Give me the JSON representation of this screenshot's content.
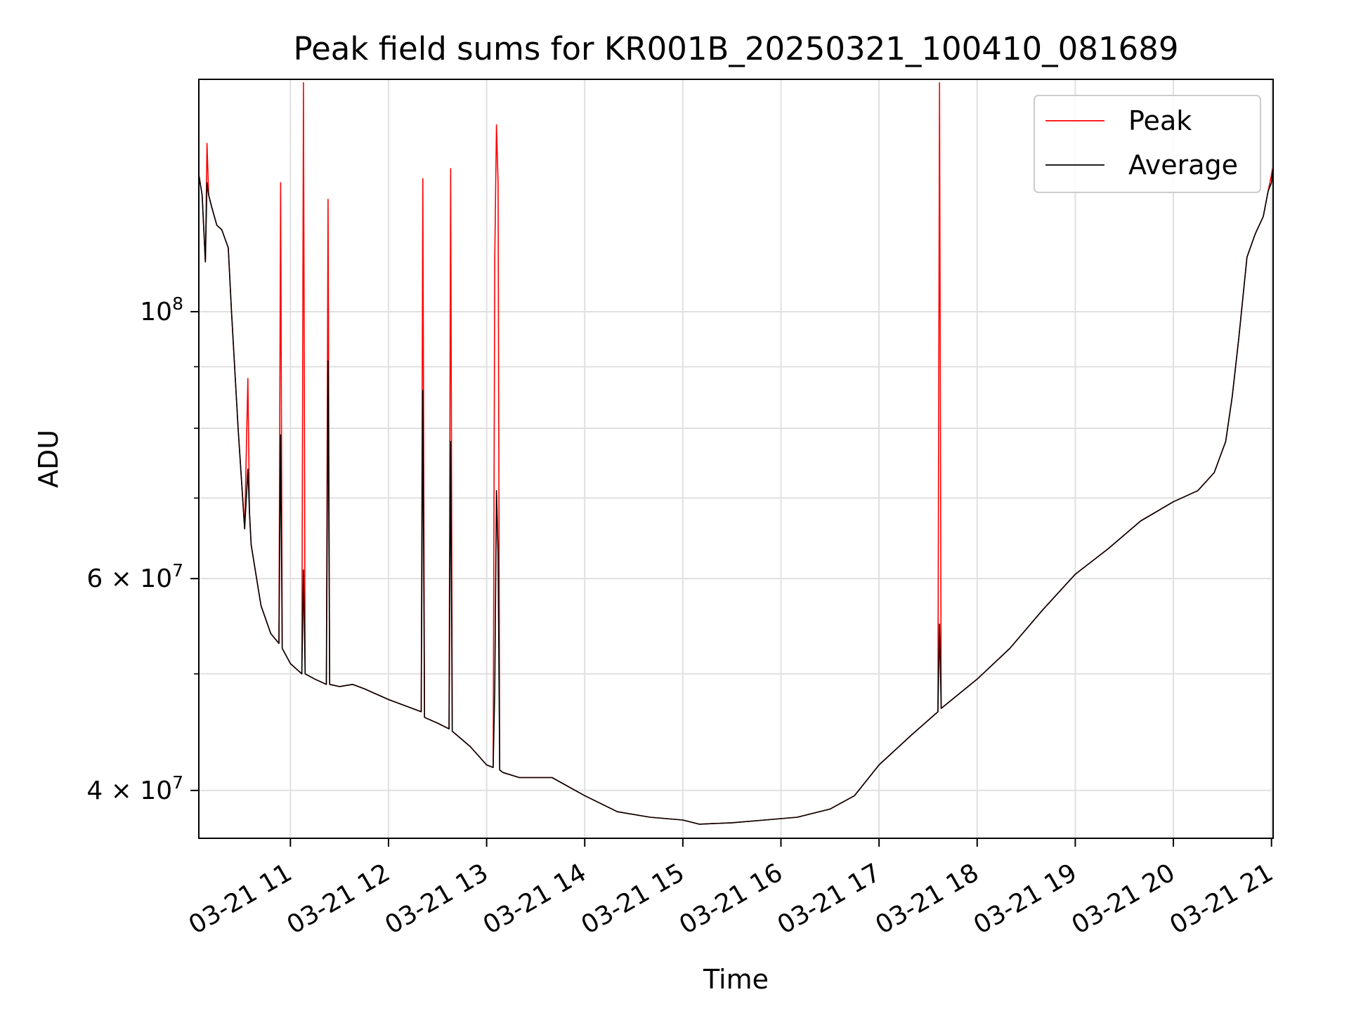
{
  "chart_data": {
    "type": "line",
    "title": "Peak field sums for KR001B_20250321_100410_081689",
    "xlabel": "Time",
    "ylabel": "ADU",
    "y_scale": "log",
    "ylim": [
      36500000,
      156000000
    ],
    "xlim": [
      "2025-03-21 10:04",
      "2025-03-21 21:01"
    ],
    "grid": true,
    "legend_position": "upper-right",
    "x_ticks": [
      "2025-03-21 11:00",
      "2025-03-21 12:00",
      "2025-03-21 13:00",
      "2025-03-21 14:00",
      "2025-03-21 15:00",
      "2025-03-21 16:00",
      "2025-03-21 17:00",
      "2025-03-21 18:00",
      "2025-03-21 19:00",
      "2025-03-21 20:00",
      "2025-03-21 21:00"
    ],
    "x_tick_labels": [
      "03-21 11",
      "03-21 12",
      "03-21 13",
      "03-21 14",
      "03-21 15",
      "03-21 16",
      "03-21 17",
      "03-21 18",
      "03-21 19",
      "03-21 20",
      "03-21 21"
    ],
    "y_major_ticks": [
      {
        "value": 40000000,
        "label": "4 × 10⁷",
        "mant": "4",
        "exp": "7"
      },
      {
        "value": 60000000,
        "label": "6 × 10⁷",
        "mant": "6",
        "exp": "7"
      },
      {
        "value": 100000000,
        "label": "10⁸",
        "mant": "",
        "exp": "8"
      }
    ],
    "y_minor_ticks": [
      50000000,
      70000000,
      80000000,
      90000000
    ],
    "series": [
      {
        "name": "Peak",
        "color": "#ff0000",
        "x": [
          "2025-03-21 10:04",
          "2025-03-21 10:06",
          "2025-03-21 10:08",
          "2025-03-21 10:09",
          "2025-03-21 10:10",
          "2025-03-21 10:12",
          "2025-03-21 10:15",
          "2025-03-21 10:18",
          "2025-03-21 10:22",
          "2025-03-21 10:24",
          "2025-03-21 10:28",
          "2025-03-21 10:32",
          "2025-03-21 10:34",
          "2025-03-21 10:35",
          "2025-03-21 10:36",
          "2025-03-21 10:42",
          "2025-03-21 10:48",
          "2025-03-21 10:53",
          "2025-03-21 10:54",
          "2025-03-21 10:55",
          "2025-03-21 11:00",
          "2025-03-21 11:07",
          "2025-03-21 11:08",
          "2025-03-21 11:09",
          "2025-03-21 11:15",
          "2025-03-21 11:22",
          "2025-03-21 11:23",
          "2025-03-21 11:24",
          "2025-03-21 11:30",
          "2025-03-21 11:38",
          "2025-03-21 11:45",
          "2025-03-21 12:00",
          "2025-03-21 12:20",
          "2025-03-21 12:21",
          "2025-03-21 12:22",
          "2025-03-21 12:30",
          "2025-03-21 12:37",
          "2025-03-21 12:38",
          "2025-03-21 12:39",
          "2025-03-21 12:50",
          "2025-03-21 13:00",
          "2025-03-21 13:04",
          "2025-03-21 13:05",
          "2025-03-21 13:06",
          "2025-03-21 13:07",
          "2025-03-21 13:08",
          "2025-03-21 13:10",
          "2025-03-21 13:20",
          "2025-03-21 13:40",
          "2025-03-21 14:00",
          "2025-03-21 14:20",
          "2025-03-21 14:40",
          "2025-03-21 15:00",
          "2025-03-21 15:10",
          "2025-03-21 15:30",
          "2025-03-21 15:50",
          "2025-03-21 16:10",
          "2025-03-21 16:30",
          "2025-03-21 16:45",
          "2025-03-21 17:00",
          "2025-03-21 17:20",
          "2025-03-21 17:36",
          "2025-03-21 17:37",
          "2025-03-21 17:38",
          "2025-03-21 18:00",
          "2025-03-21 18:20",
          "2025-03-21 18:40",
          "2025-03-21 19:00",
          "2025-03-21 19:20",
          "2025-03-21 19:40",
          "2025-03-21 20:00",
          "2025-03-21 20:15",
          "2025-03-21 20:25",
          "2025-03-21 20:32",
          "2025-03-21 20:36",
          "2025-03-21 20:40",
          "2025-03-21 20:45",
          "2025-03-21 20:50",
          "2025-03-21 20:55",
          "2025-03-21 20:58",
          "2025-03-21 21:00",
          "2025-03-21 21:01"
        ],
        "values": [
          130000000,
          125000000,
          110000000,
          138000000,
          125000000,
          122000000,
          118000000,
          117000000,
          113000000,
          100000000,
          80000000,
          66000000,
          88000000,
          68000000,
          64000000,
          57000000,
          54000000,
          53000000,
          128000000,
          52500000,
          51000000,
          50000000,
          155000000,
          50000000,
          49500000,
          49000000,
          124000000,
          49000000,
          48800000,
          49000000,
          48600000,
          47600000,
          46500000,
          129000000,
          46000000,
          45500000,
          45000000,
          131500000,
          44800000,
          43500000,
          42000000,
          41800000,
          111000000,
          143000000,
          128000000,
          41600000,
          41400000,
          41000000,
          41000000,
          39600000,
          38400000,
          38000000,
          37800000,
          37500000,
          37600000,
          37800000,
          38000000,
          38600000,
          39600000,
          42000000,
          44500000,
          46500000,
          155000000,
          46800000,
          49500000,
          52500000,
          56500000,
          60500000,
          63500000,
          67000000,
          69500000,
          71000000,
          73500000,
          78000000,
          85000000,
          95000000,
          111000000,
          116000000,
          120000000,
          126000000,
          130000000,
          132000000
        ]
      },
      {
        "name": "Average",
        "color": "#000000",
        "x": [
          "2025-03-21 10:04",
          "2025-03-21 10:06",
          "2025-03-21 10:08",
          "2025-03-21 10:09",
          "2025-03-21 10:10",
          "2025-03-21 10:12",
          "2025-03-21 10:15",
          "2025-03-21 10:18",
          "2025-03-21 10:22",
          "2025-03-21 10:24",
          "2025-03-21 10:28",
          "2025-03-21 10:32",
          "2025-03-21 10:34",
          "2025-03-21 10:35",
          "2025-03-21 10:36",
          "2025-03-21 10:42",
          "2025-03-21 10:48",
          "2025-03-21 10:53",
          "2025-03-21 10:54",
          "2025-03-21 10:55",
          "2025-03-21 11:00",
          "2025-03-21 11:07",
          "2025-03-21 11:08",
          "2025-03-21 11:09",
          "2025-03-21 11:15",
          "2025-03-21 11:22",
          "2025-03-21 11:23",
          "2025-03-21 11:24",
          "2025-03-21 11:30",
          "2025-03-21 11:38",
          "2025-03-21 11:45",
          "2025-03-21 12:00",
          "2025-03-21 12:20",
          "2025-03-21 12:21",
          "2025-03-21 12:22",
          "2025-03-21 12:30",
          "2025-03-21 12:37",
          "2025-03-21 12:38",
          "2025-03-21 12:39",
          "2025-03-21 12:50",
          "2025-03-21 13:00",
          "2025-03-21 13:04",
          "2025-03-21 13:05",
          "2025-03-21 13:06",
          "2025-03-21 13:07",
          "2025-03-21 13:08",
          "2025-03-21 13:10",
          "2025-03-21 13:20",
          "2025-03-21 13:40",
          "2025-03-21 14:00",
          "2025-03-21 14:20",
          "2025-03-21 14:40",
          "2025-03-21 15:00",
          "2025-03-21 15:10",
          "2025-03-21 15:30",
          "2025-03-21 15:50",
          "2025-03-21 16:10",
          "2025-03-21 16:30",
          "2025-03-21 16:45",
          "2025-03-21 17:00",
          "2025-03-21 17:20",
          "2025-03-21 17:36",
          "2025-03-21 17:37",
          "2025-03-21 17:38",
          "2025-03-21 18:00",
          "2025-03-21 18:20",
          "2025-03-21 18:40",
          "2025-03-21 19:00",
          "2025-03-21 19:20",
          "2025-03-21 19:40",
          "2025-03-21 20:00",
          "2025-03-21 20:15",
          "2025-03-21 20:25",
          "2025-03-21 20:32",
          "2025-03-21 20:36",
          "2025-03-21 20:40",
          "2025-03-21 20:45",
          "2025-03-21 20:50",
          "2025-03-21 20:55",
          "2025-03-21 20:58",
          "2025-03-21 21:00",
          "2025-03-21 21:01"
        ],
        "values": [
          130000000,
          125000000,
          110000000,
          128000000,
          125000000,
          122000000,
          118000000,
          117000000,
          113000000,
          100000000,
          80000000,
          66000000,
          74000000,
          68000000,
          64000000,
          57000000,
          54000000,
          53000000,
          79000000,
          52500000,
          51000000,
          50000000,
          61000000,
          50000000,
          49500000,
          49000000,
          91000000,
          49000000,
          48800000,
          49000000,
          48600000,
          47600000,
          46500000,
          86000000,
          46000000,
          45500000,
          45000000,
          78000000,
          44800000,
          43500000,
          42000000,
          41800000,
          48500000,
          71000000,
          63000000,
          41600000,
          41400000,
          41000000,
          41000000,
          39600000,
          38400000,
          38000000,
          37800000,
          37500000,
          37600000,
          37800000,
          38000000,
          38600000,
          39600000,
          42000000,
          44500000,
          46500000,
          55000000,
          46800000,
          49500000,
          52500000,
          56500000,
          60500000,
          63500000,
          67000000,
          69500000,
          71000000,
          73500000,
          78000000,
          85000000,
          95000000,
          111000000,
          116000000,
          120000000,
          126000000,
          128000000,
          132000000
        ]
      }
    ]
  }
}
